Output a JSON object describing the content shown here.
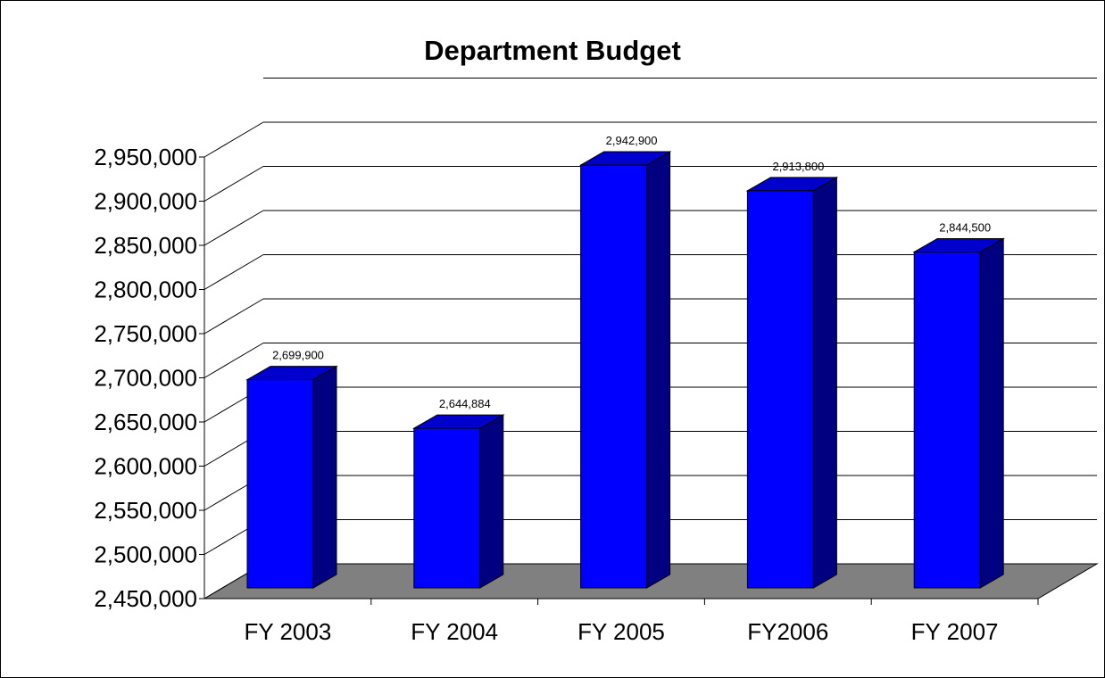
{
  "chart_data": {
    "type": "bar",
    "style": "3d-column",
    "title": "Department Budget",
    "xlabel": "",
    "ylabel": "",
    "categories": [
      "FY 2003",
      "FY 2004",
      "FY 2005",
      "FY2006",
      "FY 2007"
    ],
    "values": [
      2699900,
      2644884,
      2942900,
      2913800,
      2844500
    ],
    "data_labels": [
      "2,699,900",
      "2,644,884",
      "2,942,900",
      "2,913,800",
      "2,844,500"
    ],
    "ylim": [
      2450000,
      3000000
    ],
    "y_ticks": [
      2450000,
      2500000,
      2550000,
      2600000,
      2650000,
      2700000,
      2750000,
      2800000,
      2850000,
      2900000,
      2950000
    ],
    "y_tick_labels": [
      "2,450,000",
      "2,500,000",
      "2,550,000",
      "2,600,000",
      "2,650,000",
      "2,700,000",
      "2,750,000",
      "2,800,000",
      "2,850,000",
      "2,900,000",
      "2,950,000"
    ],
    "grid": true,
    "legend": "none",
    "colors": {
      "bar_front": "#0000FF",
      "bar_side": "#000080",
      "bar_top": "#0000CC",
      "floor": "#808080",
      "grid": "#000000"
    }
  }
}
